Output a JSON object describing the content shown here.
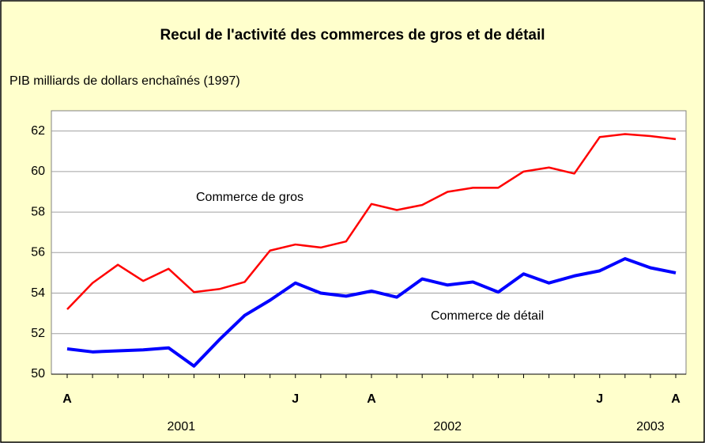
{
  "chart_data": {
    "type": "line",
    "title": "Recul de l'activité des commerces de gros et de détail",
    "subtitle": "PIB milliards de dollars enchaînés (1997)",
    "categories": [
      "A",
      null,
      null,
      null,
      null,
      null,
      null,
      null,
      null,
      "J",
      null,
      null,
      "A",
      null,
      null,
      null,
      null,
      null,
      null,
      null,
      null,
      "J",
      null,
      null,
      "A"
    ],
    "x_groups": [
      {
        "label": "2001",
        "start": 0,
        "end": 8
      },
      {
        "label": "2002",
        "start": 9,
        "end": 20
      },
      {
        "label": "2003",
        "start": 21,
        "end": 24
      }
    ],
    "series": [
      {
        "name": "Commerce de gros",
        "color": "#ff0000",
        "values": [
          53.2,
          54.5,
          55.4,
          54.6,
          55.2,
          54.05,
          54.2,
          54.55,
          56.1,
          56.4,
          56.25,
          56.55,
          58.4,
          58.1,
          58.35,
          59.0,
          59.2,
          59.2,
          60.0,
          60.2,
          59.9,
          61.7,
          61.85,
          61.75,
          61.6
        ]
      },
      {
        "name": "Commerce de détail",
        "color": "#0000ff",
        "values": [
          51.25,
          51.1,
          51.15,
          51.2,
          51.3,
          50.4,
          51.7,
          52.9,
          53.65,
          54.5,
          54.0,
          53.85,
          54.1,
          53.8,
          54.7,
          54.4,
          54.55,
          54.05,
          54.95,
          54.5,
          54.85,
          55.1,
          55.7,
          55.25,
          55.0
        ]
      }
    ],
    "ylim": [
      50,
      63
    ],
    "yticks": [
      50,
      52,
      54,
      56,
      58,
      60,
      62
    ],
    "grid": true
  }
}
